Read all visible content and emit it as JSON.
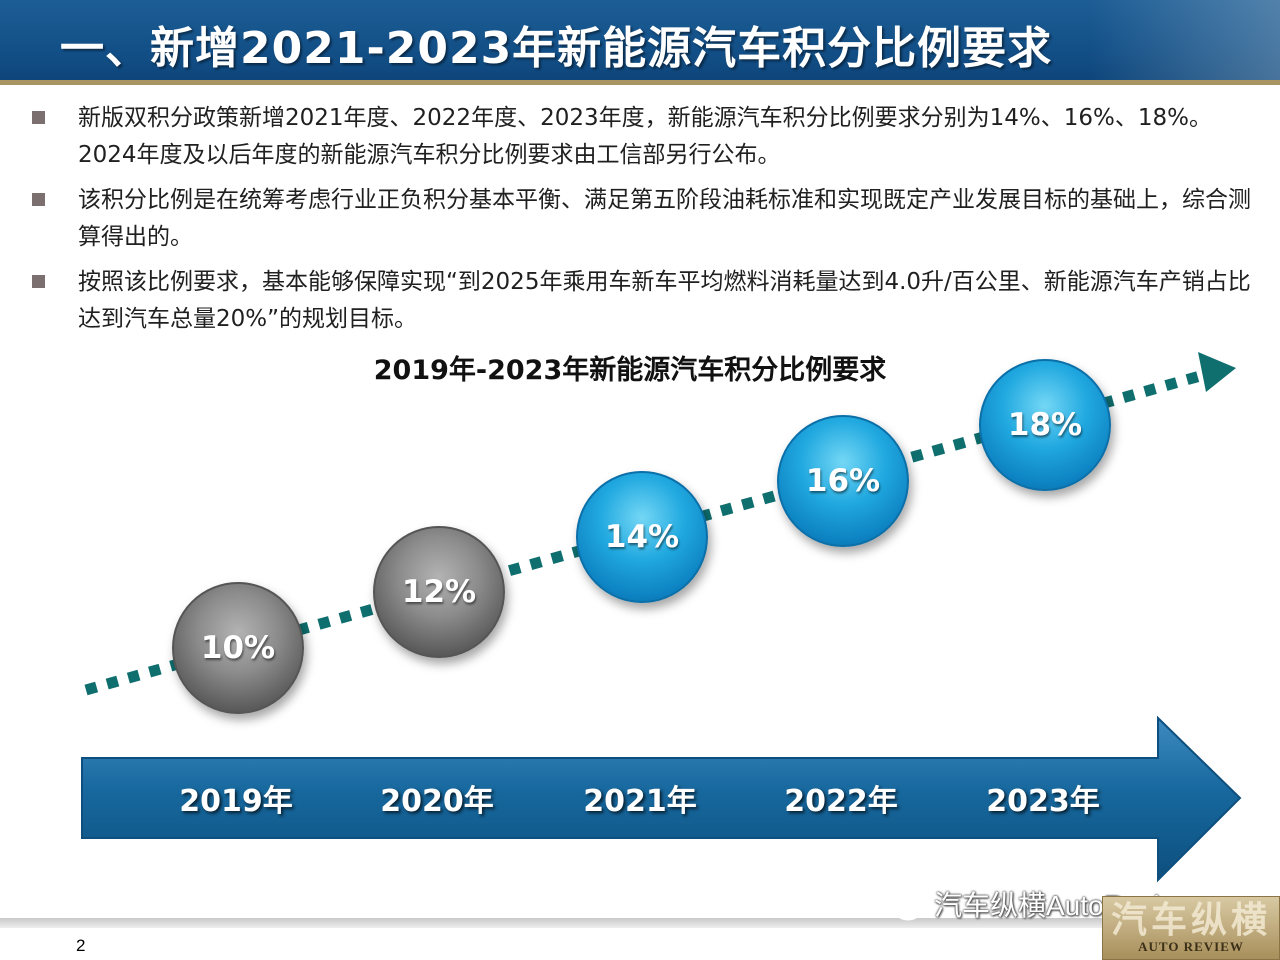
{
  "header": {
    "title": "一、新增2021-2023年新能源汽车积分比例要求"
  },
  "bullets": [
    {
      "text": "新版双积分政策新增2021年度、2022年度、2023年度，新能源汽车积分比例要求分别为14%、16%、18%。2024年度及以后年度的新能源汽车积分比例要求由工信部另行公布。"
    },
    {
      "text": "该积分比例是在统筹考虑行业正负积分基本平衡、满足第五阶段油耗标准和实现既定产业发展目标的基础上，综合测算得出的。"
    },
    {
      "text": "按照该比例要求，基本能够保障实现“到2025年乘用车新车平均燃料消耗量达到4.0升/百公里、新能源汽车产销占比达到汽车总量20%”的规划目标。"
    }
  ],
  "chart": {
    "title": "2019年-2023年新能源汽车积分比例要求",
    "points": [
      {
        "year": "2019年",
        "label": "10%",
        "value": 10,
        "style": "gray"
      },
      {
        "year": "2020年",
        "label": "12%",
        "value": 12,
        "style": "gray"
      },
      {
        "year": "2021年",
        "label": "14%",
        "value": 14,
        "style": "blue"
      },
      {
        "year": "2022年",
        "label": "16%",
        "value": 16,
        "style": "blue"
      },
      {
        "year": "2023年",
        "label": "18%",
        "value": 18,
        "style": "blue"
      }
    ]
  },
  "footer": {
    "page_number": "2",
    "watermark": "汽车纵横AutoReview",
    "stamp_main": "汽车纵横",
    "stamp_sub": "AUTO REVIEW"
  },
  "colors": {
    "title_bar": "#135088",
    "accent_gold": "#a99564",
    "trend_dots": "#0f6e6e",
    "arrow_blue": "#17689e"
  }
}
